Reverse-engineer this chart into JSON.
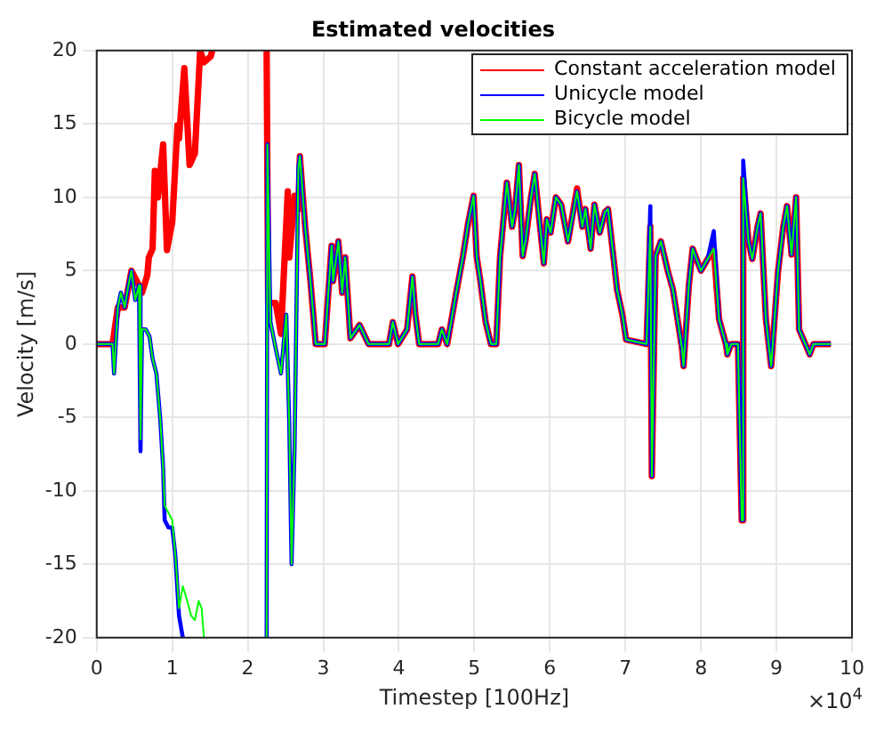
{
  "chart_data": {
    "type": "line",
    "title": "Estimated velocities",
    "xlabel": "Timestep [100Hz]",
    "ylabel": "Velocity [m/s]",
    "annotations": [
      "×10$^{4}$"
    ],
    "xlim": [
      0,
      10
    ],
    "xticks": [
      0,
      1,
      2,
      3,
      4,
      5,
      6,
      7,
      8,
      9,
      10
    ],
    "ylim": [
      -20,
      20
    ],
    "yticks": [
      -20,
      -15,
      -10,
      -5,
      0,
      5,
      10,
      15,
      20
    ],
    "grid": true,
    "legend": "top right",
    "line_style": "solid",
    "marker": "none",
    "series": [
      {
        "name": "Constant acceleration model",
        "color": "#ff0000",
        "x": [
          0,
          0.21,
          0.28,
          0.37,
          0.46,
          0.56,
          0.6,
          0.63,
          0.67,
          0.69,
          0.74,
          0.77,
          0.81,
          0.88,
          0.93,
          1,
          1.07,
          1.09,
          1.16,
          1.23,
          1.3,
          1.37,
          1.42,
          1.51,
          1.53,
          1.8,
          2.25,
          2.27,
          2.37,
          2.44,
          2.53,
          2.55,
          2.62,
          2.67,
          2.69,
          2.76,
          2.83,
          2.9,
          3.02,
          3.11,
          3.13,
          3.2,
          3.25,
          3.29,
          3.36,
          3.48,
          3.6,
          3.87,
          3.92,
          3.99,
          4.11,
          4.18,
          4.22,
          4.27,
          4.52,
          4.57,
          4.64,
          4.76,
          4.85,
          4.92,
          4.99,
          5.03,
          5.08,
          5.15,
          5.22,
          5.29,
          5.34,
          5.43,
          5.5,
          5.54,
          5.59,
          5.64,
          5.68,
          5.75,
          5.8,
          5.87,
          5.92,
          5.96,
          6.01,
          6.08,
          6.15,
          6.24,
          6.36,
          6.43,
          6.47,
          6.54,
          6.59,
          6.66,
          6.73,
          6.77,
          6.84,
          6.89,
          6.96,
          7.01,
          7.28,
          7.33,
          7.35,
          7.4,
          7.47,
          7.56,
          7.63,
          7.75,
          7.77,
          7.84,
          7.89,
          8,
          8.09,
          8.17,
          8.24,
          8.33,
          8.35,
          8.4,
          8.49,
          8.54,
          8.56,
          8.63,
          8.68,
          8.75,
          8.79,
          8.86,
          8.93,
          9.02,
          9.09,
          9.14,
          9.2,
          9.26,
          9.3,
          9.4,
          9.44,
          9.49,
          9.72
        ],
        "values": [
          0,
          0,
          2.5,
          2.5,
          5,
          4,
          3.5,
          4,
          4.7,
          5.9,
          6.5,
          11.8,
          10,
          13.6,
          6.4,
          8.3,
          14.9,
          14,
          18.8,
          12.2,
          13,
          20,
          19.2,
          19.6,
          20,
          null,
          20,
          2.8,
          2.8,
          0.7,
          10.4,
          5.9,
          10.1,
          9.2,
          12.8,
          8,
          4.3,
          0,
          0,
          6.7,
          4.3,
          7,
          3.5,
          5.9,
          0.4,
          1.3,
          0,
          0,
          1.5,
          0,
          1,
          4.6,
          2,
          0,
          0,
          1,
          0,
          3.5,
          6,
          8.3,
          10.1,
          6,
          4.3,
          1.5,
          0,
          0,
          5.9,
          11,
          8,
          9.2,
          12.2,
          6,
          7.1,
          10,
          11.6,
          8,
          5.5,
          8.5,
          7.6,
          10,
          9.5,
          7,
          10.6,
          8,
          9.2,
          6.5,
          9.5,
          7.6,
          9,
          9.2,
          6,
          3.7,
          2,
          0.3,
          0,
          8,
          -9,
          6,
          7,
          5,
          3.7,
          -0.3,
          -1.5,
          4,
          6.5,
          5,
          5.8,
          6.5,
          1.7,
          0,
          -0.7,
          0,
          0,
          -12,
          11.3,
          7,
          5.8,
          8,
          8.9,
          1.7,
          -1.5,
          4.9,
          8,
          9.4,
          6.1,
          10,
          1,
          -0.2,
          -0.7,
          0,
          0
        ]
      },
      {
        "name": "Unicycle model",
        "color": "#0000ff",
        "x": [
          0,
          0.21,
          0.23,
          0.28,
          0.32,
          0.37,
          0.42,
          0.46,
          0.51,
          0.56,
          0.58,
          0.6,
          0.65,
          0.7,
          0.74,
          0.79,
          0.84,
          0.88,
          0.9,
          0.95,
          1,
          1.04,
          1.09,
          1.14,
          1.8,
          2.25,
          2.26,
          2.3,
          2.37,
          2.44,
          2.51,
          2.55,
          2.58,
          2.62,
          2.67,
          2.69,
          2.76,
          2.83,
          2.9,
          3.02,
          3.11,
          3.13,
          3.2,
          3.25,
          3.29,
          3.36,
          3.48,
          3.6,
          3.87,
          3.92,
          3.99,
          4.11,
          4.18,
          4.22,
          4.27,
          4.52,
          4.57,
          4.64,
          4.76,
          4.85,
          4.92,
          4.99,
          5.03,
          5.08,
          5.15,
          5.22,
          5.29,
          5.34,
          5.43,
          5.5,
          5.54,
          5.59,
          5.64,
          5.68,
          5.75,
          5.8,
          5.87,
          5.92,
          5.96,
          6.01,
          6.08,
          6.15,
          6.24,
          6.36,
          6.43,
          6.47,
          6.54,
          6.59,
          6.66,
          6.73,
          6.77,
          6.84,
          6.89,
          6.96,
          7.01,
          7.28,
          7.33,
          7.35,
          7.4,
          7.47,
          7.56,
          7.63,
          7.75,
          7.77,
          7.84,
          7.89,
          8,
          8.09,
          8.17,
          8.24,
          8.33,
          8.35,
          8.4,
          8.49,
          8.54,
          8.56,
          8.63,
          8.68,
          8.75,
          8.79,
          8.86,
          8.93,
          9.02,
          9.09,
          9.14,
          9.2,
          9.26,
          9.3,
          9.4,
          9.44,
          9.49,
          9.72
        ],
        "values": [
          0,
          0,
          -2,
          2.5,
          3.5,
          2.5,
          4,
          5,
          3,
          4,
          -7.3,
          1,
          1,
          0.5,
          -1,
          -2,
          -5,
          -8.5,
          -12,
          -12.5,
          -12.5,
          -14.3,
          -18.5,
          -20,
          null,
          -20,
          13.6,
          1.5,
          -0.3,
          -2,
          2,
          -5.5,
          -15,
          -7,
          12,
          12.8,
          8,
          4.3,
          0,
          0,
          6.7,
          4.3,
          7,
          3.5,
          5.9,
          0.4,
          1.3,
          0,
          0,
          1.5,
          0,
          1,
          4.6,
          2,
          0,
          0,
          1,
          0,
          3.5,
          6,
          8.3,
          10.1,
          6,
          4.3,
          1.5,
          0,
          0,
          5.9,
          11,
          8,
          9.2,
          12.2,
          6,
          7.1,
          10,
          11.6,
          8,
          5.5,
          8.5,
          7.6,
          10,
          9.5,
          7,
          10.4,
          8,
          9.2,
          6.5,
          9.5,
          7.6,
          9,
          9.2,
          6,
          3.7,
          2,
          0.3,
          0,
          9.4,
          -9,
          6,
          7,
          5,
          3.7,
          -0.3,
          -1.5,
          4,
          6.5,
          5,
          5.8,
          7.7,
          1.7,
          0,
          -0.7,
          0,
          0,
          -12,
          12.5,
          7,
          5.8,
          8,
          8.9,
          1.7,
          -1.5,
          4.9,
          8,
          9.4,
          6.1,
          10,
          1,
          -0.2,
          -0.7,
          0,
          0
        ]
      },
      {
        "name": "Bicycle model",
        "color": "#00ff00",
        "x": [
          0,
          0.21,
          0.23,
          0.28,
          0.32,
          0.37,
          0.42,
          0.46,
          0.51,
          0.56,
          0.58,
          0.6,
          0.65,
          0.7,
          0.74,
          0.79,
          0.84,
          0.88,
          0.9,
          0.95,
          1,
          1.04,
          1.09,
          1.14,
          1.21,
          1.25,
          1.3,
          1.35,
          1.39,
          1.42,
          1.8,
          2.25,
          2.26,
          2.3,
          2.37,
          2.44,
          2.51,
          2.55,
          2.58,
          2.62,
          2.67,
          2.69,
          2.76,
          2.83,
          2.9,
          3.02,
          3.11,
          3.13,
          3.2,
          3.25,
          3.29,
          3.36,
          3.48,
          3.6,
          3.87,
          3.92,
          3.99,
          4.11,
          4.18,
          4.22,
          4.27,
          4.52,
          4.57,
          4.64,
          4.76,
          4.85,
          4.92,
          4.99,
          5.03,
          5.08,
          5.15,
          5.22,
          5.29,
          5.34,
          5.43,
          5.5,
          5.54,
          5.59,
          5.64,
          5.68,
          5.75,
          5.8,
          5.87,
          5.92,
          5.96,
          6.01,
          6.08,
          6.15,
          6.24,
          6.36,
          6.43,
          6.47,
          6.54,
          6.59,
          6.66,
          6.73,
          6.77,
          6.84,
          6.89,
          6.96,
          7.01,
          7.28,
          7.33,
          7.35,
          7.4,
          7.47,
          7.56,
          7.63,
          7.75,
          7.77,
          7.84,
          7.89,
          8,
          8.09,
          8.17,
          8.24,
          8.33,
          8.35,
          8.4,
          8.49,
          8.54,
          8.56,
          8.63,
          8.68,
          8.75,
          8.79,
          8.86,
          8.93,
          9.02,
          9.09,
          9.14,
          9.2,
          9.26,
          9.3,
          9.4,
          9.44,
          9.49,
          9.72
        ],
        "values": [
          0,
          0,
          -2,
          2.5,
          3.5,
          2.5,
          4,
          5,
          3,
          4,
          -6.5,
          1,
          1,
          0.5,
          -1,
          -2,
          -5,
          -8.5,
          -11,
          -11.5,
          -12,
          -14.3,
          -18,
          -16.5,
          -17.7,
          -18.5,
          -18.8,
          -17.5,
          -18,
          -20,
          null,
          -20,
          13.6,
          1.5,
          -0.3,
          -2,
          2,
          -5.5,
          -15,
          -7,
          12,
          12.8,
          8,
          4.3,
          0,
          0,
          6.7,
          4.3,
          7,
          3.5,
          5.9,
          0.4,
          1.3,
          0,
          0,
          1.5,
          0,
          1,
          4.6,
          2,
          0,
          0,
          1,
          0,
          3.5,
          6,
          8.3,
          10.1,
          6,
          4.3,
          1.5,
          0,
          0,
          5.9,
          11,
          8,
          9.2,
          12.2,
          6,
          7.1,
          10,
          11.6,
          8,
          5.5,
          8.5,
          7.6,
          10,
          9.5,
          7,
          10.4,
          8,
          9.2,
          6.5,
          9.5,
          7.6,
          9,
          9.2,
          6,
          3.7,
          2,
          0.3,
          0,
          8,
          -9,
          6,
          7,
          5,
          3.7,
          -0.3,
          -1.5,
          4,
          6.5,
          5,
          5.8,
          6.5,
          1.7,
          0,
          -0.7,
          0,
          0,
          -12,
          11.3,
          7,
          5.8,
          8,
          8.9,
          1.7,
          -1.5,
          4.9,
          8,
          9.4,
          6.1,
          10,
          1,
          -0.2,
          -0.7,
          0,
          0
        ]
      }
    ]
  }
}
